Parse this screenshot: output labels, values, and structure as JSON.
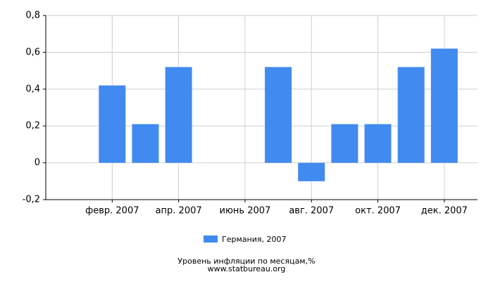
{
  "chart_data": {
    "type": "bar",
    "categories": [
      null,
      "февр. 2007",
      null,
      "апр. 2007",
      null,
      "июнь 2007",
      null,
      "авг. 2007",
      null,
      "окт. 2007",
      null,
      "дек. 2007"
    ],
    "series": [
      {
        "name": "Германия, 2007",
        "color": "#418aef",
        "values": [
          0,
          0.42,
          0.21,
          0.52,
          0,
          0,
          0.52,
          -0.1,
          0.21,
          0.21,
          0.52,
          0.62
        ]
      }
    ],
    "ylim": [
      -0.2,
      0.8
    ],
    "yticks": [
      {
        "value": -0.2,
        "label": "-0,2"
      },
      0,
      {
        "value": 0.2,
        "label": "0,2"
      },
      {
        "value": 0.4,
        "label": "0,4"
      },
      {
        "value": 0.6,
        "label": "0,6"
      },
      {
        "value": 0.8,
        "label": "0,8"
      }
    ],
    "grid": true,
    "title": "Уровень инфляции по месяцам,%",
    "subtitle": "www.statbureau.org"
  }
}
